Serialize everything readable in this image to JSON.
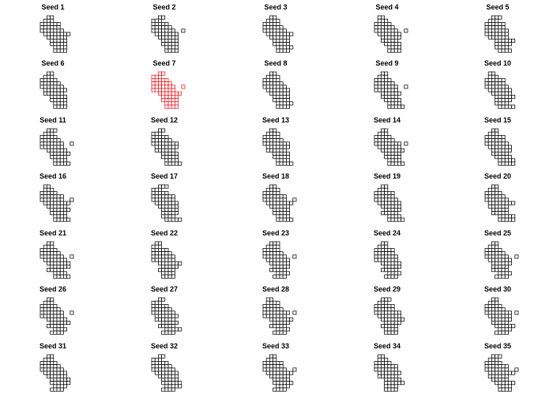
{
  "chart_data": {
    "type": "small-multiples-grid-map",
    "panel_grid": {
      "rows": 7,
      "cols": 5
    },
    "highlight_panel": "Seed 7",
    "colors": {
      "default_outline": "#000000",
      "highlight_outline": "#e8141b",
      "cell_fill": "#ffffff"
    },
    "panels": [
      {
        "title": "Seed 1",
        "highlighted": false
      },
      {
        "title": "Seed 2",
        "highlighted": false
      },
      {
        "title": "Seed 3",
        "highlighted": false
      },
      {
        "title": "Seed 4",
        "highlighted": false
      },
      {
        "title": "Seed 5",
        "highlighted": false
      },
      {
        "title": "Seed 6",
        "highlighted": false
      },
      {
        "title": "Seed 7",
        "highlighted": true
      },
      {
        "title": "Seed 8",
        "highlighted": false
      },
      {
        "title": "Seed 9",
        "highlighted": false
      },
      {
        "title": "Seed 10",
        "highlighted": false
      },
      {
        "title": "Seed 11",
        "highlighted": false
      },
      {
        "title": "Seed 12",
        "highlighted": false
      },
      {
        "title": "Seed 13",
        "highlighted": false
      },
      {
        "title": "Seed 14",
        "highlighted": false
      },
      {
        "title": "Seed 15",
        "highlighted": false
      },
      {
        "title": "Seed 16",
        "highlighted": false
      },
      {
        "title": "Seed 17",
        "highlighted": false
      },
      {
        "title": "Seed 18",
        "highlighted": false
      },
      {
        "title": "Seed 19",
        "highlighted": false
      },
      {
        "title": "Seed 20",
        "highlighted": false
      },
      {
        "title": "Seed 21",
        "highlighted": false
      },
      {
        "title": "Seed 22",
        "highlighted": false
      },
      {
        "title": "Seed 23",
        "highlighted": false
      },
      {
        "title": "Seed 24",
        "highlighted": false
      },
      {
        "title": "Seed 25",
        "highlighted": false
      },
      {
        "title": "Seed 26",
        "highlighted": false
      },
      {
        "title": "Seed 27",
        "highlighted": false
      },
      {
        "title": "Seed 28",
        "highlighted": false
      },
      {
        "title": "Seed 29",
        "highlighted": false
      },
      {
        "title": "Seed 30",
        "highlighted": false
      },
      {
        "title": "Seed 31",
        "highlighted": false
      },
      {
        "title": "Seed 32",
        "highlighted": false
      },
      {
        "title": "Seed 33",
        "highlighted": false
      },
      {
        "title": "Seed 34",
        "highlighted": false
      },
      {
        "title": "Seed 35",
        "highlighted": false
      }
    ]
  }
}
